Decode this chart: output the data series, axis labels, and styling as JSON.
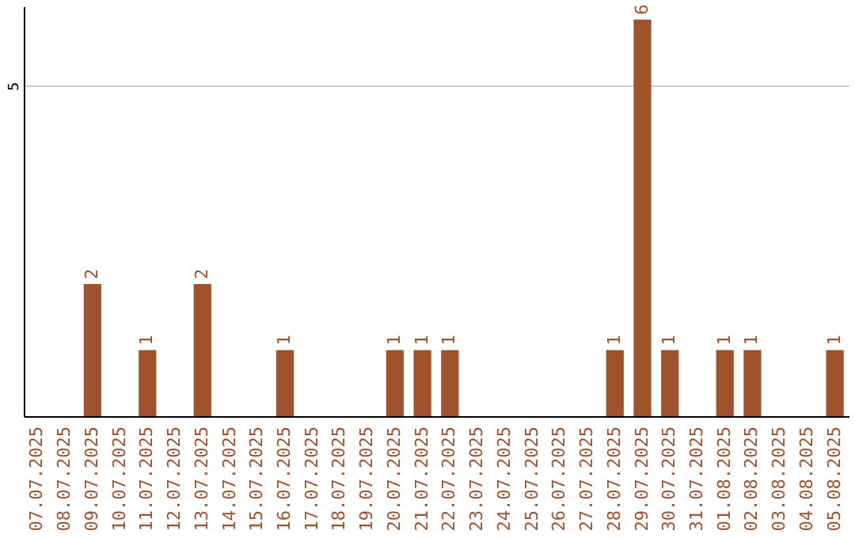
{
  "chart_data": {
    "type": "bar",
    "categories": [
      "07.07.2025",
      "08.07.2025",
      "09.07.2025",
      "10.07.2025",
      "11.07.2025",
      "12.07.2025",
      "13.07.2025",
      "14.07.2025",
      "15.07.2025",
      "16.07.2025",
      "17.07.2025",
      "18.07.2025",
      "19.07.2025",
      "20.07.2025",
      "21.07.2025",
      "22.07.2025",
      "23.07.2025",
      "24.07.2025",
      "25.07.2025",
      "26.07.2025",
      "27.07.2025",
      "28.07.2025",
      "29.07.2025",
      "30.07.2025",
      "31.07.2025",
      "01.08.2025",
      "02.08.2025",
      "03.08.2025",
      "04.08.2025",
      "05.08.2025"
    ],
    "values": [
      null,
      null,
      2,
      null,
      1,
      null,
      2,
      null,
      null,
      1,
      null,
      null,
      null,
      1,
      1,
      1,
      null,
      null,
      null,
      null,
      null,
      1,
      6,
      1,
      null,
      1,
      1,
      null,
      null,
      1
    ],
    "color": "#a0522d",
    "ylim": [
      0,
      6.2
    ],
    "yticks": [
      5
    ],
    "grid": "y",
    "data_labels": true
  }
}
